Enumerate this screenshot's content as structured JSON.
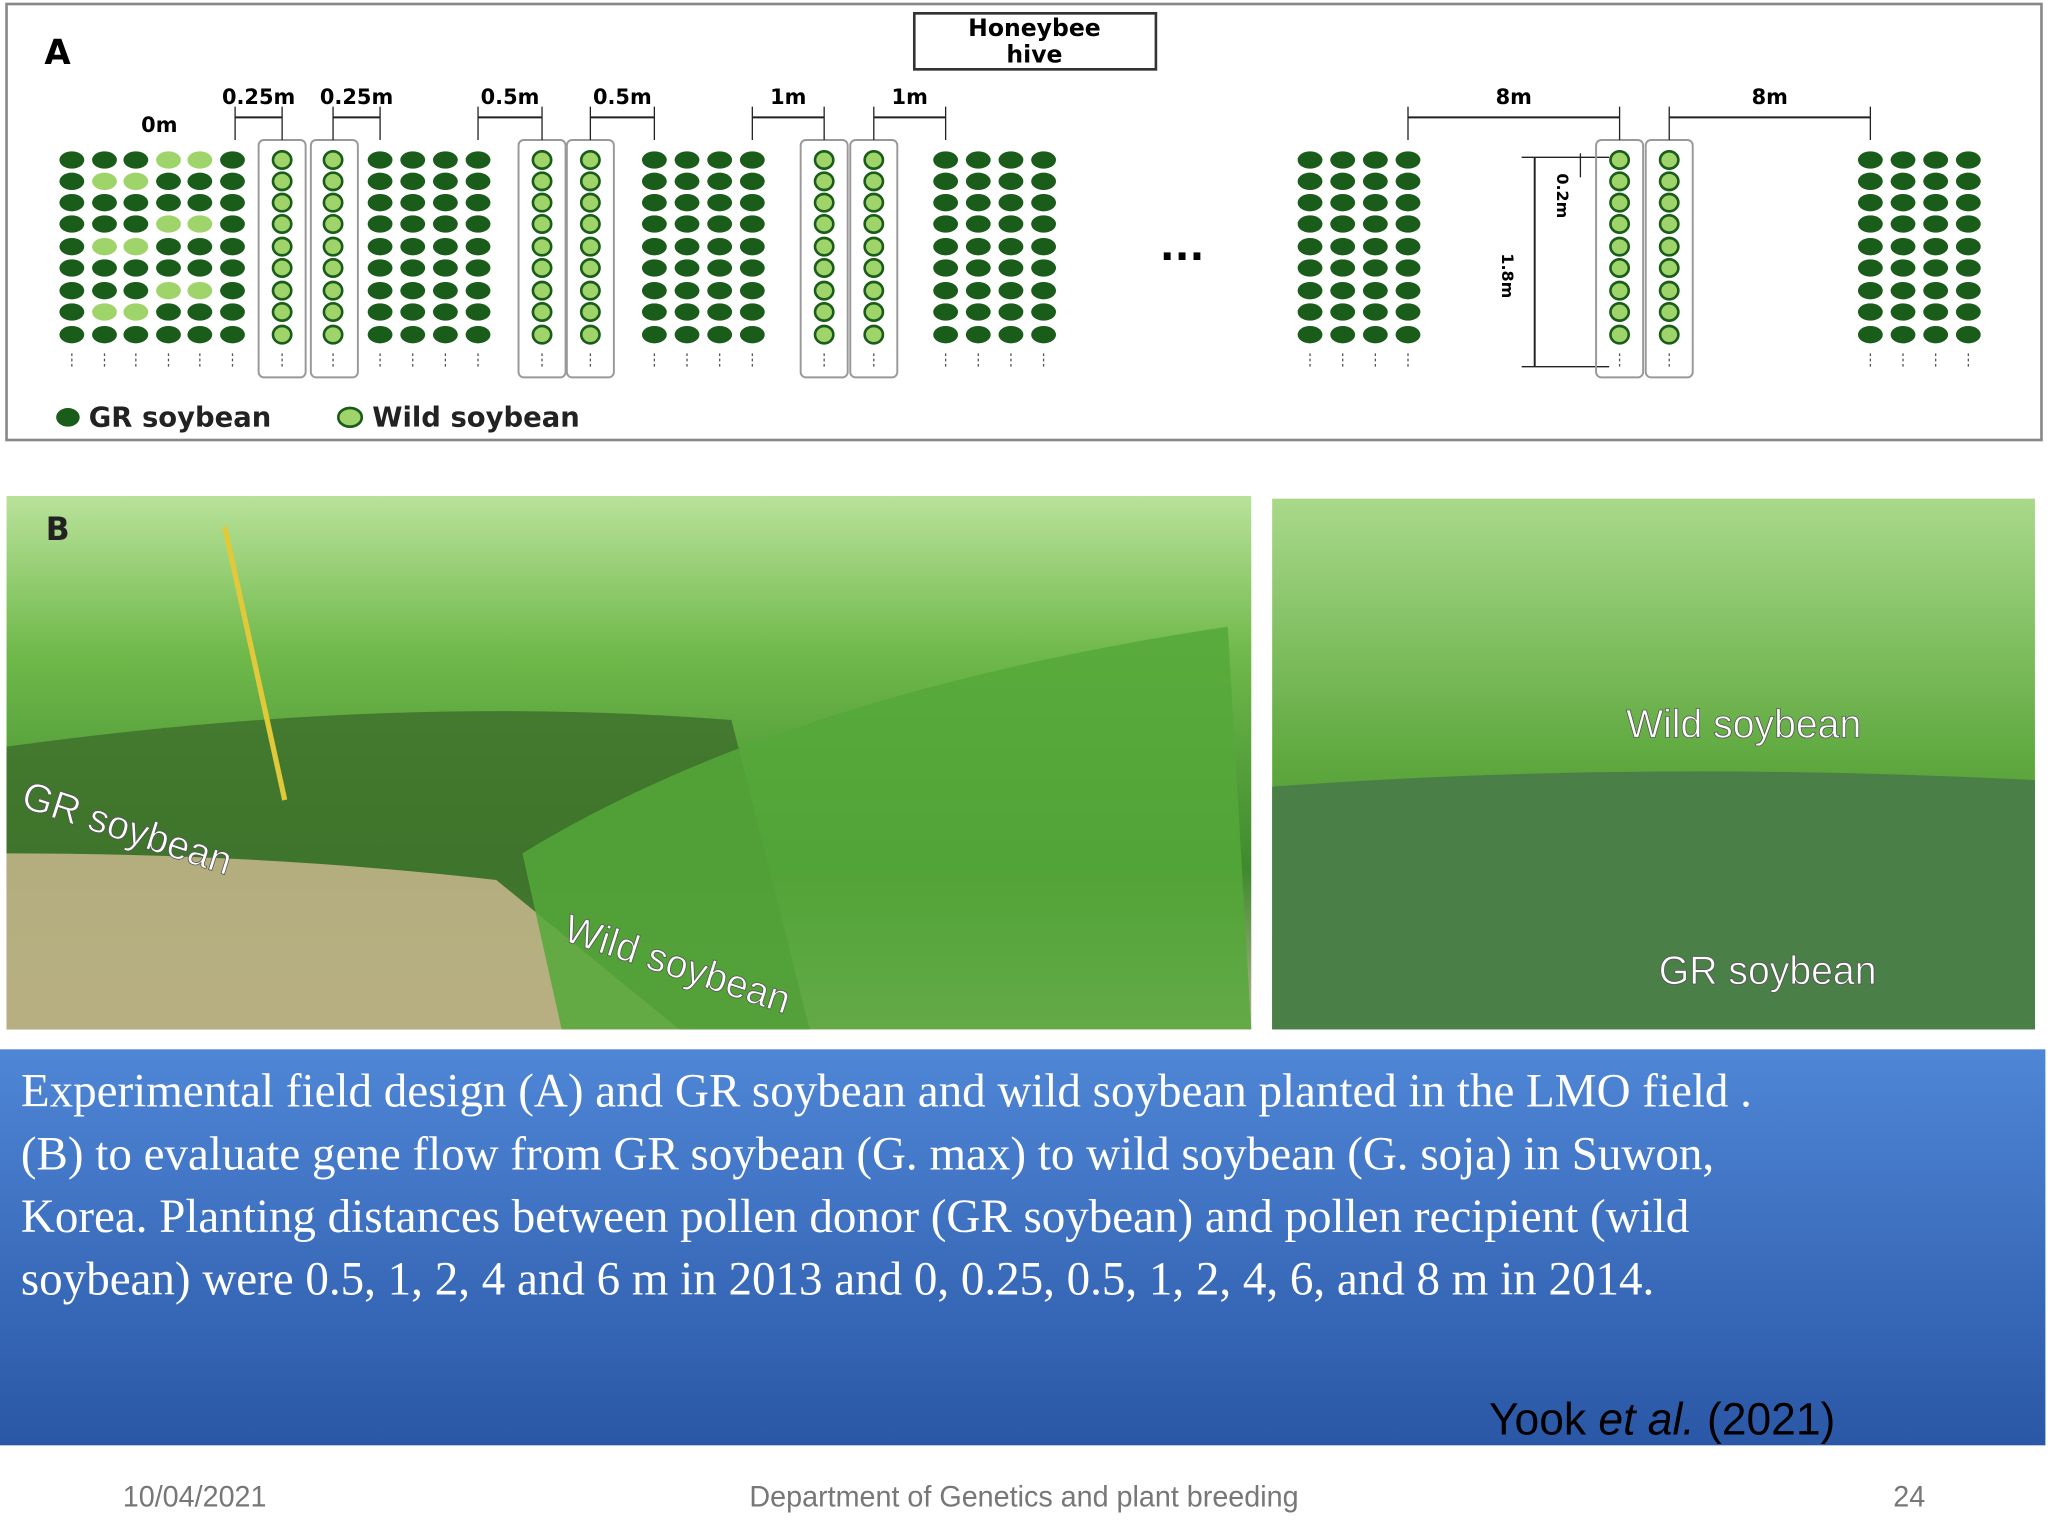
{
  "panel_a": {
    "label": "A",
    "hive": [
      "Honeybee",
      "hive"
    ],
    "distances": [
      "0m",
      "0.25m",
      "0.25m",
      "0.5m",
      "0.5m",
      "1m",
      "1m",
      "8m",
      "8m"
    ],
    "row_spacing": "0.2m",
    "row_length": "1.8m",
    "ellipsis": "...",
    "legend": [
      "GR soybean",
      "Wild soybean"
    ]
  },
  "panel_b": {
    "label": "B",
    "left_photo": [
      "GR soybean",
      "Wild soybean"
    ],
    "right_photo": [
      "Wild soybean",
      "GR soybean"
    ]
  },
  "caption": [
    "Experimental field design (A) and GR soybean and wild soybean planted in the LMO field .",
    "(B) to evaluate gene flow from GR soybean (G. max) to wild soybean (G. soja) in Suwon,",
    "Korea. Planting distances between pollen donor (GR soybean) and pollen recipient (wild",
    "soybean) were 0.5, 1, 2, 4 and 6 m in 2013 and 0, 0.25, 0.5, 1, 2, 4, 6, and 8 m in 2014."
  ],
  "citation": {
    "author": "Yook ",
    "etal": "et al.",
    "year": " (2021)"
  },
  "footer": {
    "date": "10/04/2021",
    "department": "Department of Genetics and plant breeding",
    "page": "24"
  }
}
